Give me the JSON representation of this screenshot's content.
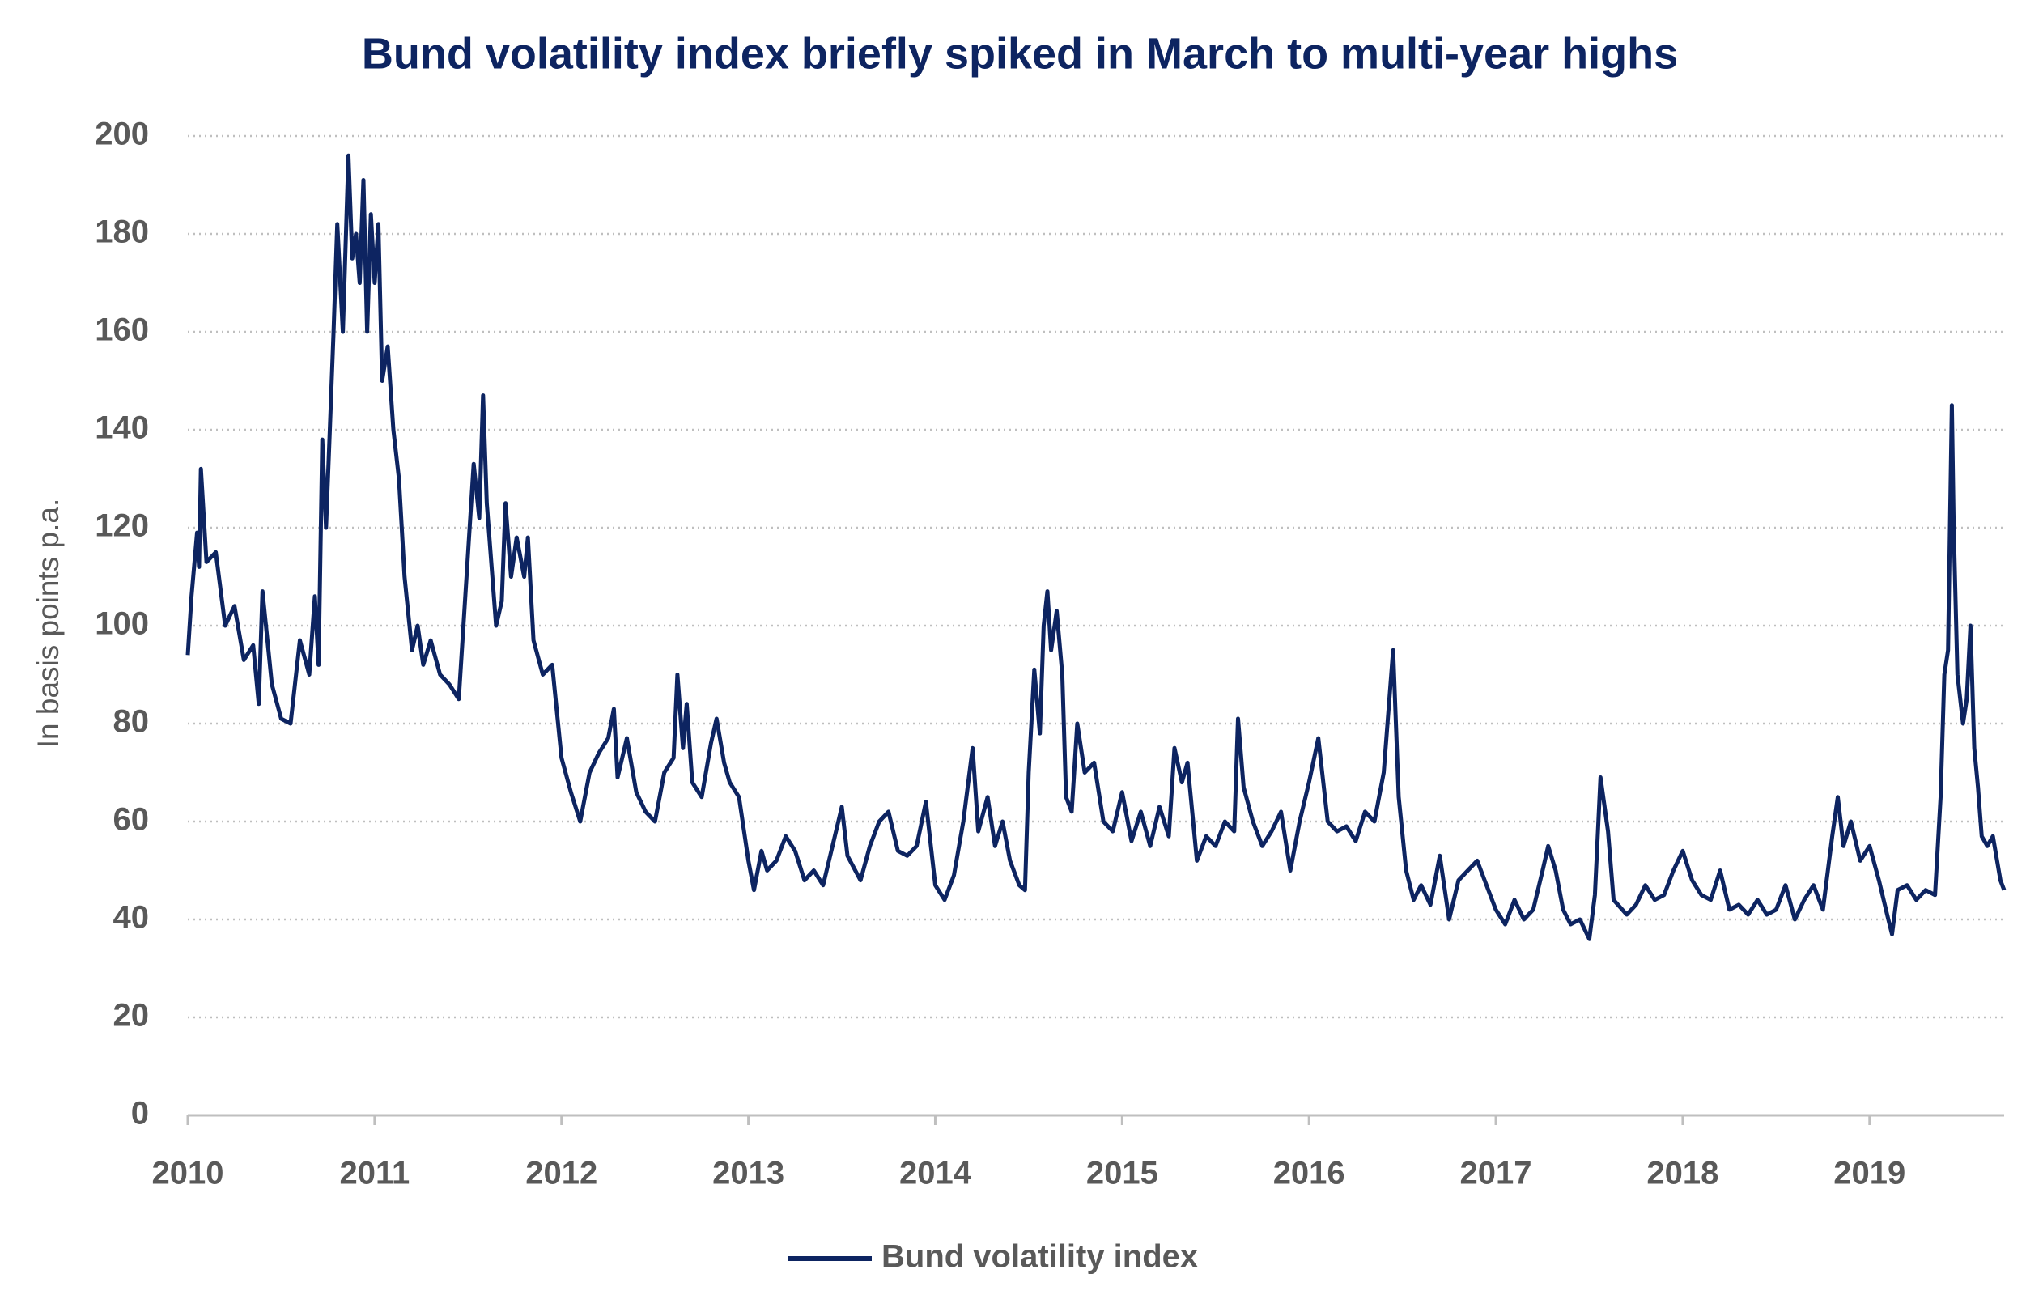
{
  "chart_data": {
    "type": "line",
    "title": "Bund volatility index briefly spiked in March to multi-year highs",
    "y_label": "In basis points p.a.",
    "x": [
      2010.0,
      2010.02,
      2010.05,
      2010.06,
      2010.07,
      2010.1,
      2010.15,
      2010.2,
      2010.25,
      2010.3,
      2010.35,
      2010.38,
      2010.4,
      2010.45,
      2010.5,
      2010.55,
      2010.6,
      2010.65,
      2010.68,
      2010.7,
      2010.72,
      2010.74,
      2010.76,
      2010.78,
      2010.8,
      2010.83,
      2010.86,
      2010.88,
      2010.9,
      2010.92,
      2010.94,
      2010.96,
      2010.98,
      2011.0,
      2011.02,
      2011.04,
      2011.07,
      2011.1,
      2011.13,
      2011.16,
      2011.2,
      2011.23,
      2011.26,
      2011.3,
      2011.35,
      2011.4,
      2011.45,
      2011.5,
      2011.53,
      2011.56,
      2011.58,
      2011.6,
      2011.65,
      2011.68,
      2011.7,
      2011.73,
      2011.76,
      2011.8,
      2011.82,
      2011.85,
      2011.9,
      2011.95,
      2012.0,
      2012.05,
      2012.1,
      2012.15,
      2012.2,
      2012.25,
      2012.28,
      2012.3,
      2012.35,
      2012.4,
      2012.45,
      2012.5,
      2012.55,
      2012.6,
      2012.62,
      2012.65,
      2012.67,
      2012.7,
      2012.75,
      2012.8,
      2012.83,
      2012.87,
      2012.9,
      2012.95,
      2013.0,
      2013.03,
      2013.07,
      2013.1,
      2013.15,
      2013.2,
      2013.25,
      2013.3,
      2013.35,
      2013.4,
      2013.45,
      2013.5,
      2013.53,
      2013.6,
      2013.65,
      2013.7,
      2013.75,
      2013.8,
      2013.85,
      2013.9,
      2013.95,
      2014.0,
      2014.05,
      2014.1,
      2014.15,
      2014.2,
      2014.23,
      2014.28,
      2014.32,
      2014.36,
      2014.4,
      2014.45,
      2014.48,
      2014.5,
      2014.53,
      2014.56,
      2014.58,
      2014.6,
      2014.62,
      2014.65,
      2014.68,
      2014.7,
      2014.73,
      2014.76,
      2014.8,
      2014.85,
      2014.9,
      2014.95,
      2015.0,
      2015.05,
      2015.1,
      2015.15,
      2015.2,
      2015.25,
      2015.28,
      2015.32,
      2015.35,
      2015.4,
      2015.45,
      2015.5,
      2015.55,
      2015.6,
      2015.62,
      2015.65,
      2015.7,
      2015.75,
      2015.8,
      2015.85,
      2015.9,
      2015.95,
      2016.0,
      2016.05,
      2016.1,
      2016.15,
      2016.2,
      2016.25,
      2016.3,
      2016.35,
      2016.4,
      2016.45,
      2016.48,
      2016.52,
      2016.56,
      2016.6,
      2016.65,
      2016.7,
      2016.75,
      2016.8,
      2016.85,
      2016.9,
      2016.95,
      2017.0,
      2017.05,
      2017.1,
      2017.15,
      2017.2,
      2017.25,
      2017.28,
      2017.32,
      2017.36,
      2017.4,
      2017.45,
      2017.5,
      2017.53,
      2017.56,
      2017.6,
      2017.63,
      2017.7,
      2017.75,
      2017.8,
      2017.85,
      2017.9,
      2017.95,
      2018.0,
      2018.05,
      2018.1,
      2018.15,
      2018.2,
      2018.25,
      2018.3,
      2018.35,
      2018.4,
      2018.45,
      2018.5,
      2018.55,
      2018.6,
      2018.65,
      2018.7,
      2018.75,
      2018.8,
      2018.83,
      2018.86,
      2018.9,
      2018.95,
      2019.0,
      2019.05,
      2019.1,
      2019.12,
      2019.15,
      2019.2,
      2019.25,
      2019.3,
      2019.35,
      2019.38,
      2019.4,
      2019.42,
      2019.44,
      2019.45,
      2019.47,
      2019.5,
      2019.52,
      2019.54,
      2019.56,
      2019.58,
      2019.6,
      2019.63,
      2019.66,
      2019.7,
      2019.72
    ],
    "series": [
      {
        "name": "Bund volatility index",
        "color": "#0d2461",
        "values": [
          94,
          106,
          119,
          112,
          132,
          113,
          115,
          100,
          104,
          93,
          96,
          84,
          107,
          88,
          81,
          80,
          97,
          90,
          106,
          92,
          138,
          120,
          140,
          160,
          182,
          160,
          196,
          175,
          180,
          170,
          191,
          160,
          184,
          170,
          182,
          150,
          157,
          140,
          130,
          110,
          95,
          100,
          92,
          97,
          90,
          88,
          85,
          115,
          133,
          122,
          147,
          125,
          100,
          105,
          125,
          110,
          118,
          110,
          118,
          97,
          90,
          92,
          73,
          66,
          60,
          70,
          74,
          77,
          83,
          69,
          77,
          66,
          62,
          60,
          70,
          73,
          90,
          75,
          84,
          68,
          65,
          76,
          81,
          72,
          68,
          65,
          52,
          46,
          54,
          50,
          52,
          57,
          54,
          48,
          50,
          47,
          55,
          63,
          53,
          48,
          55,
          60,
          62,
          54,
          53,
          55,
          64,
          47,
          44,
          49,
          60,
          75,
          58,
          65,
          55,
          60,
          52,
          47,
          46,
          70,
          91,
          78,
          100,
          107,
          95,
          103,
          90,
          65,
          62,
          80,
          70,
          72,
          60,
          58,
          66,
          56,
          62,
          55,
          63,
          57,
          75,
          68,
          72,
          52,
          57,
          55,
          60,
          58,
          81,
          67,
          60,
          55,
          58,
          62,
          50,
          60,
          68,
          77,
          60,
          58,
          59,
          56,
          62,
          60,
          70,
          95,
          65,
          50,
          44,
          47,
          43,
          53,
          40,
          48,
          50,
          52,
          47,
          42,
          39,
          44,
          40,
          42,
          50,
          55,
          50,
          42,
          39,
          40,
          36,
          45,
          69,
          58,
          44,
          41,
          43,
          47,
          44,
          45,
          50,
          54,
          48,
          45,
          44,
          50,
          42,
          43,
          41,
          44,
          41,
          42,
          47,
          40,
          44,
          47,
          42,
          57,
          65,
          55,
          60,
          52,
          55,
          48,
          40,
          37,
          46,
          47,
          44,
          46,
          45,
          65,
          90,
          95,
          145,
          120,
          90,
          80,
          85,
          100,
          75,
          67,
          57,
          55,
          57,
          48,
          46
        ]
      }
    ],
    "xlim": [
      2010,
      2019.72
    ],
    "xticks": [
      2010,
      2011,
      2012,
      2013,
      2014,
      2015,
      2016,
      2017,
      2018,
      2019
    ],
    "ylim": [
      0,
      200
    ],
    "yticks": [
      0,
      20,
      40,
      60,
      80,
      100,
      120,
      140,
      160,
      180,
      200
    ],
    "grid": true,
    "legend": "bottom"
  }
}
